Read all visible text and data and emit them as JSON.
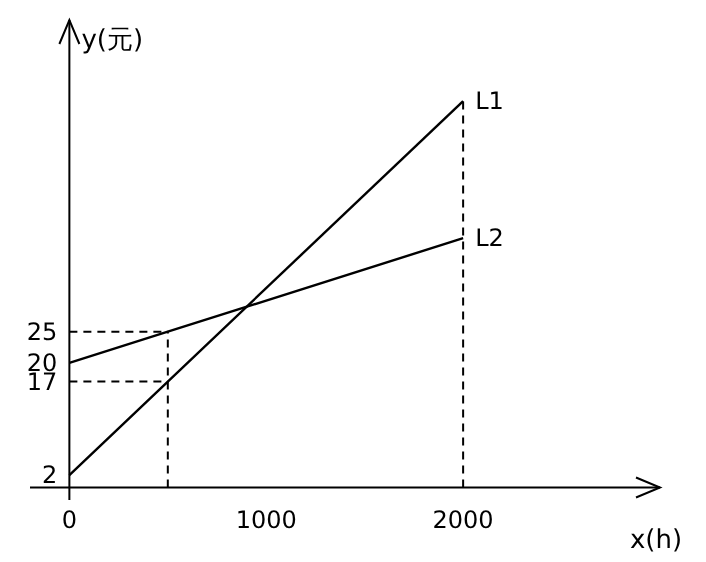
{
  "chart_data": {
    "type": "line",
    "xlabel": "x(h)",
    "ylabel": "y(元)",
    "xlim": [
      -200,
      3000
    ],
    "ylim": [
      -2,
      75
    ],
    "xticks": [
      0,
      1000,
      2000
    ],
    "yticks": [
      2,
      17,
      20,
      25
    ],
    "grid": false,
    "legend": false,
    "marker": "none",
    "line_style": "solid",
    "series": [
      {
        "name": "L1",
        "color": "#000000",
        "x": [
          0,
          500,
          2000
        ],
        "values": [
          2,
          17,
          62
        ]
      },
      {
        "name": "L2",
        "color": "#000000",
        "x": [
          0,
          500,
          2000
        ],
        "values": [
          20,
          25,
          40
        ]
      }
    ],
    "ref_lines": [
      {
        "axis": "x",
        "value": 500,
        "label": null,
        "color": "#000000",
        "line_style": "dashed"
      },
      {
        "axis": "x",
        "value": 2000,
        "label": null,
        "color": "#000000",
        "line_style": "dashed"
      },
      {
        "axis": "y",
        "value": 17,
        "label": null,
        "color": "#000000",
        "line_style": "dashed"
      },
      {
        "axis": "y",
        "value": 25,
        "label": null,
        "color": "#000000",
        "line_style": "dashed"
      }
    ]
  }
}
